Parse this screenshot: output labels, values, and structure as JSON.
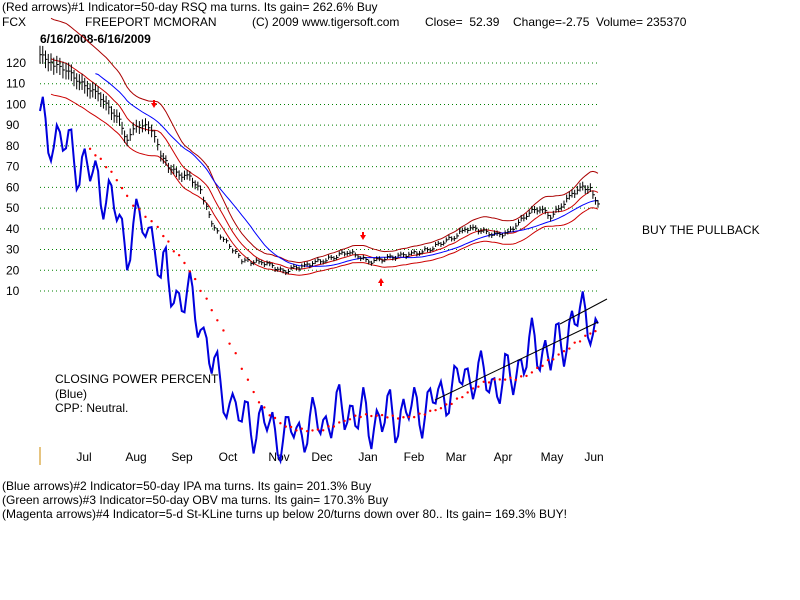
{
  "header": {
    "line1": "(Red arrows)#1 Indicator=50-day RSQ ma turns. Its gain= 262.6% Buy",
    "ticker": "FCX",
    "company": "FREEPORT MCMORAN",
    "copyright": "(C) 2009 www.tigersoft.com",
    "close": "Close=  52.39",
    "change": "Change=-2.75",
    "volume": "Volume= 235370",
    "date_range": "6/16/2008-6/16/2009"
  },
  "annotations": {
    "buy_pullback": "BUY THE PULLBACK",
    "cpp_title": "CLOSING POWER PERCENT",
    "cpp_color": "(Blue)",
    "cpp_status": "CPP: Neutral."
  },
  "footer": {
    "line1": "(Blue arrows)#2 Indicator=50-day IPA ma turns. Its gain= 201.3% Buy",
    "line2": "(Green arrows)#3 Indicator=50-day OBV ma turns. Its gain= 170.3% Buy",
    "line3": "(Magenta arrows)#4 Indicator=5-d St-KLine turns up below 20/turns down over 80.. Its gain= 169.3% BUY!"
  },
  "colors": {
    "price": "#000000",
    "band": "#cc0000",
    "ma_blue": "#0000ff",
    "cpp_line": "#0000dd",
    "cpp_ma": "#ff0000",
    "grid": "#008000",
    "arrow": "#ff0000",
    "tick_marker": "#cc8800"
  },
  "chart_data": {
    "type": "line",
    "title": "FREEPORT MCMORAN",
    "x_range": [
      "2008-06-16",
      "2009-06-16"
    ],
    "x_tick_labels": [
      "Jul",
      "Aug",
      "Sep",
      "Oct",
      "Nov",
      "Dec",
      "Jan",
      "Feb",
      "Mar",
      "Apr",
      "May",
      "Jun"
    ],
    "y_tick_labels": [
      120,
      110,
      100,
      90,
      80,
      70,
      60,
      50,
      40,
      30,
      20,
      10
    ],
    "ylim": [
      10,
      125
    ],
    "grid": true,
    "series": [
      {
        "name": "FCX",
        "values": [
          [
            "2008-06-16",
            124
          ],
          [
            "2008-06-25",
            119
          ],
          [
            "2008-07-03",
            117
          ],
          [
            "2008-07-10",
            112
          ],
          [
            "2008-07-17",
            108
          ],
          [
            "2008-07-24",
            105
          ],
          [
            "2008-07-31",
            98
          ],
          [
            "2008-08-07",
            92
          ],
          [
            "2008-08-12",
            82
          ],
          [
            "2008-08-16",
            88
          ],
          [
            "2008-08-22",
            90
          ],
          [
            "2008-08-28",
            88
          ],
          [
            "2008-09-03",
            76
          ],
          [
            "2008-09-08",
            70
          ],
          [
            "2008-09-15",
            66
          ],
          [
            "2008-09-22",
            65
          ],
          [
            "2008-09-29",
            58
          ],
          [
            "2008-10-03",
            50
          ],
          [
            "2008-10-08",
            40
          ],
          [
            "2008-10-14",
            35
          ],
          [
            "2008-10-20",
            30
          ],
          [
            "2008-10-26",
            25
          ],
          [
            "2008-11-01",
            24
          ],
          [
            "2008-11-08",
            24
          ],
          [
            "2008-11-15",
            22
          ],
          [
            "2008-11-22",
            19
          ],
          [
            "2008-11-29",
            21
          ],
          [
            "2008-12-06",
            22
          ],
          [
            "2008-12-13",
            24
          ],
          [
            "2008-12-20",
            25
          ],
          [
            "2008-12-27",
            27
          ],
          [
            "2009-01-03",
            29
          ],
          [
            "2009-01-10",
            27
          ],
          [
            "2009-01-17",
            24
          ],
          [
            "2009-01-24",
            25
          ],
          [
            "2009-01-31",
            26
          ],
          [
            "2009-02-07",
            27
          ],
          [
            "2009-02-14",
            28
          ],
          [
            "2009-02-21",
            29
          ],
          [
            "2009-02-28",
            31
          ],
          [
            "2009-03-07",
            34
          ],
          [
            "2009-03-14",
            36
          ],
          [
            "2009-03-21",
            40
          ],
          [
            "2009-03-28",
            40
          ],
          [
            "2009-04-04",
            38
          ],
          [
            "2009-04-11",
            37
          ],
          [
            "2009-04-18",
            38
          ],
          [
            "2009-04-25",
            43
          ],
          [
            "2009-05-02",
            48
          ],
          [
            "2009-05-09",
            50
          ],
          [
            "2009-05-16",
            46
          ],
          [
            "2009-05-23",
            51
          ],
          [
            "2009-05-30",
            57
          ],
          [
            "2009-06-06",
            60
          ],
          [
            "2009-06-11",
            59
          ],
          [
            "2009-06-16",
            52
          ]
        ]
      }
    ]
  }
}
